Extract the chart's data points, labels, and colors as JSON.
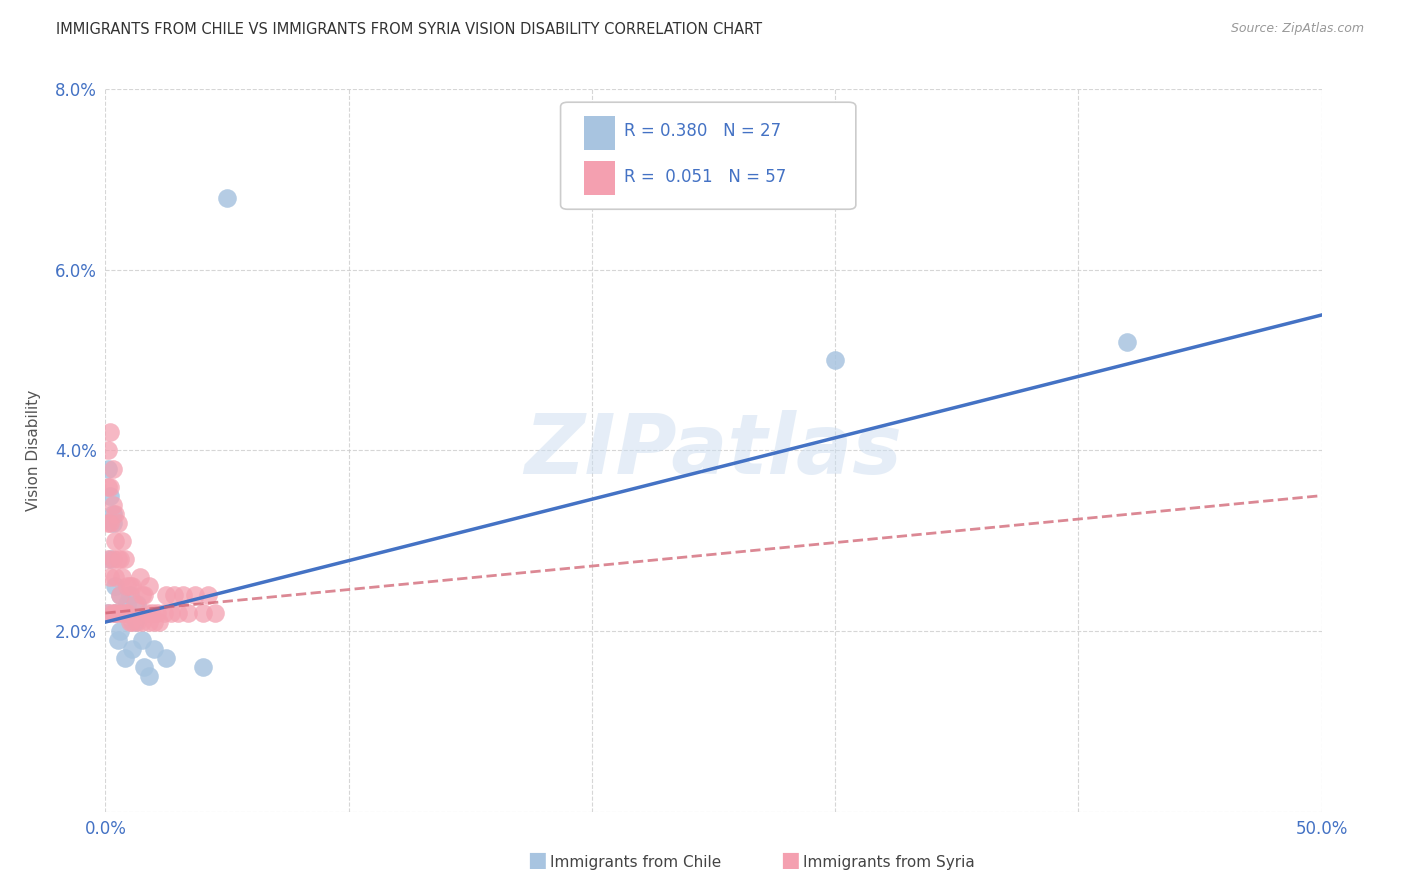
{
  "title": "IMMIGRANTS FROM CHILE VS IMMIGRANTS FROM SYRIA VISION DISABILITY CORRELATION CHART",
  "source": "Source: ZipAtlas.com",
  "ylabel": "Vision Disability",
  "xlim": [
    0,
    0.5
  ],
  "ylim": [
    0,
    0.08
  ],
  "chile_R": 0.38,
  "chile_N": 27,
  "syria_R": 0.051,
  "syria_N": 57,
  "chile_color": "#a8c4e0",
  "syria_color": "#f4a0b0",
  "chile_line_color": "#4472c4",
  "syria_line_color": "#d06070",
  "watermark": "ZIPatlas",
  "chile_line_x0": 0.0,
  "chile_line_y0": 0.021,
  "chile_line_x1": 0.5,
  "chile_line_y1": 0.055,
  "syria_line_x0": 0.0,
  "syria_line_y0": 0.022,
  "syria_line_x1": 0.5,
  "syria_line_y1": 0.035,
  "chile_x": [
    0.001,
    0.001,
    0.002,
    0.002,
    0.003,
    0.003,
    0.004,
    0.004,
    0.005,
    0.006,
    0.006,
    0.007,
    0.008,
    0.009,
    0.01,
    0.011,
    0.012,
    0.013,
    0.015,
    0.016,
    0.018,
    0.02,
    0.025,
    0.04,
    0.05,
    0.3,
    0.42
  ],
  "chile_y": [
    0.022,
    0.038,
    0.028,
    0.035,
    0.033,
    0.032,
    0.025,
    0.022,
    0.019,
    0.024,
    0.02,
    0.022,
    0.017,
    0.023,
    0.024,
    0.018,
    0.021,
    0.023,
    0.019,
    0.016,
    0.015,
    0.018,
    0.017,
    0.016,
    0.068,
    0.05,
    0.052
  ],
  "syria_x": [
    0.001,
    0.001,
    0.001,
    0.001,
    0.001,
    0.002,
    0.002,
    0.002,
    0.002,
    0.003,
    0.003,
    0.003,
    0.003,
    0.004,
    0.004,
    0.004,
    0.004,
    0.005,
    0.005,
    0.005,
    0.006,
    0.006,
    0.007,
    0.007,
    0.007,
    0.008,
    0.008,
    0.009,
    0.009,
    0.01,
    0.01,
    0.011,
    0.011,
    0.012,
    0.013,
    0.014,
    0.015,
    0.015,
    0.016,
    0.017,
    0.018,
    0.018,
    0.019,
    0.02,
    0.021,
    0.022,
    0.024,
    0.025,
    0.027,
    0.028,
    0.03,
    0.032,
    0.034,
    0.037,
    0.04,
    0.042,
    0.045
  ],
  "syria_y": [
    0.04,
    0.036,
    0.032,
    0.028,
    0.022,
    0.042,
    0.036,
    0.032,
    0.026,
    0.038,
    0.034,
    0.028,
    0.022,
    0.033,
    0.03,
    0.026,
    0.022,
    0.032,
    0.028,
    0.022,
    0.028,
    0.024,
    0.03,
    0.026,
    0.022,
    0.028,
    0.022,
    0.025,
    0.022,
    0.025,
    0.021,
    0.025,
    0.021,
    0.023,
    0.021,
    0.026,
    0.024,
    0.021,
    0.024,
    0.022,
    0.021,
    0.025,
    0.022,
    0.021,
    0.022,
    0.021,
    0.022,
    0.024,
    0.022,
    0.024,
    0.022,
    0.024,
    0.022,
    0.024,
    0.022,
    0.024,
    0.022
  ]
}
